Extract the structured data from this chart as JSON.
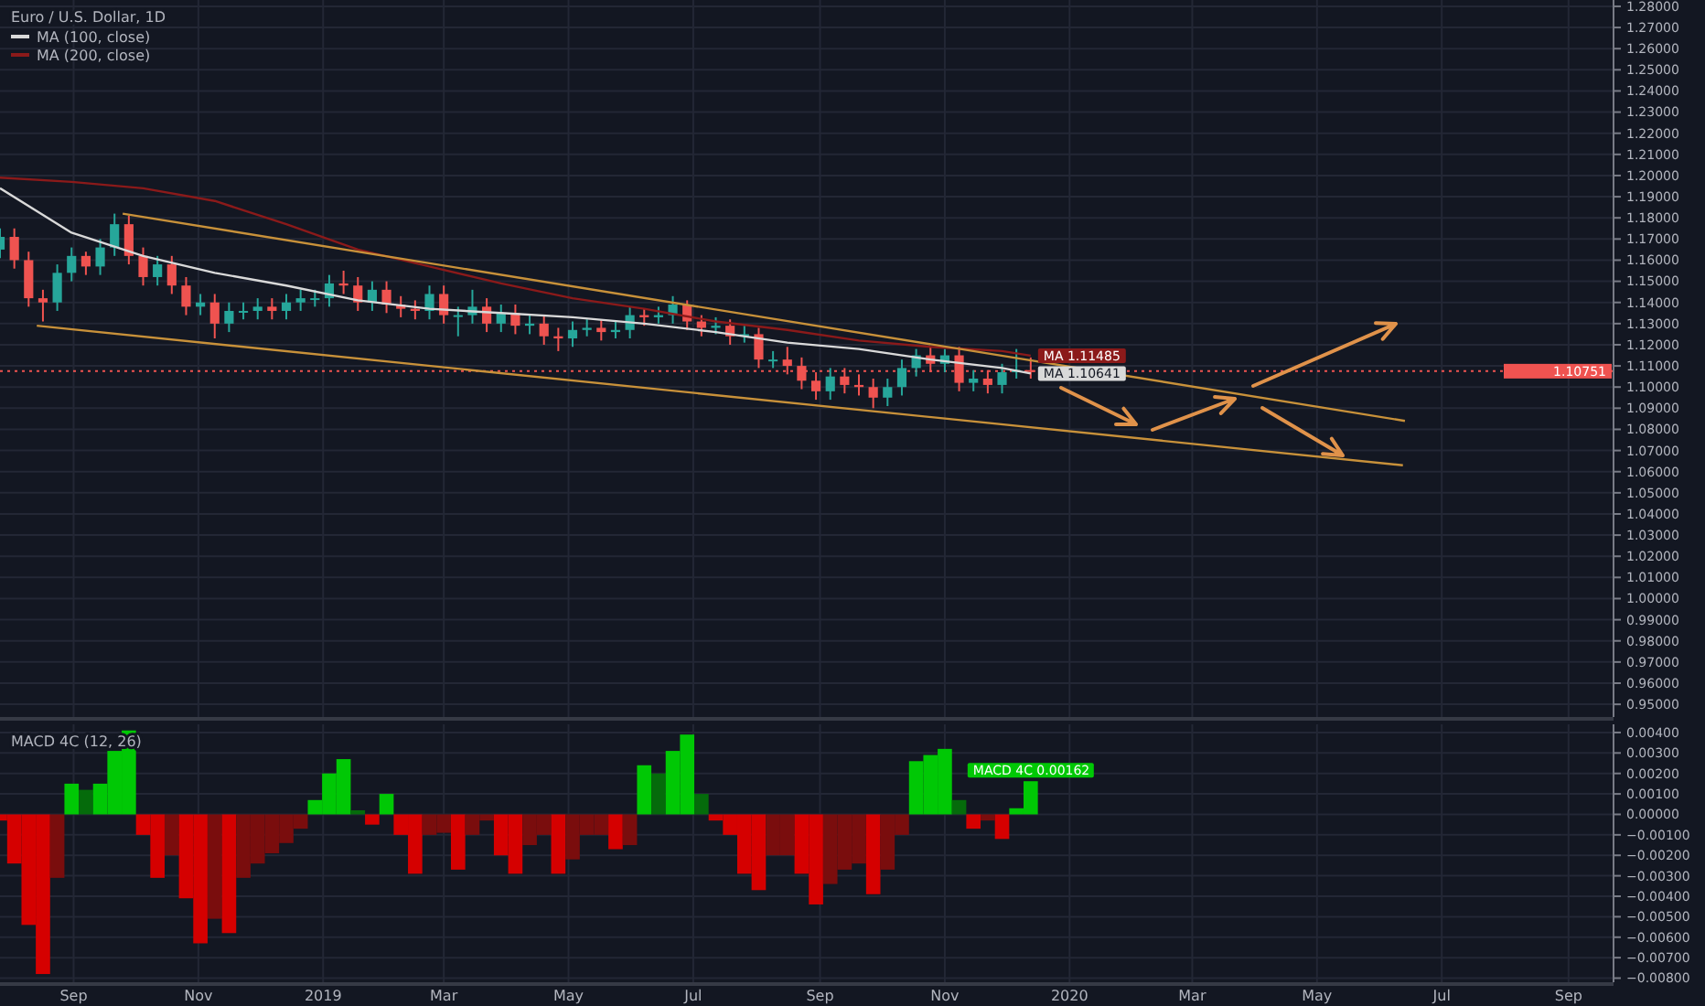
{
  "chart_data": [
    {
      "type": "candlestick",
      "title": "Euro / U.S. Dollar, 1D",
      "legend": "top left",
      "grid": true,
      "tick_labels": "y",
      "x": [
        "2018-07-27",
        "2018-08-03",
        "2018-08-10",
        "2018-08-17",
        "2018-08-24",
        "2018-08-31",
        "2018-09-07",
        "2018-09-14",
        "2018-09-21",
        "2018-09-28",
        "2018-10-05",
        "2018-10-12",
        "2018-10-19",
        "2018-10-26",
        "2018-11-02",
        "2018-11-09",
        "2018-11-16",
        "2018-11-23",
        "2018-11-30",
        "2018-12-07",
        "2018-12-14",
        "2018-12-21",
        "2018-12-28",
        "2019-01-04",
        "2019-01-11",
        "2019-01-18",
        "2019-01-25",
        "2019-02-01",
        "2019-02-08",
        "2019-02-15",
        "2019-02-22",
        "2019-03-01",
        "2019-03-08",
        "2019-03-15",
        "2019-03-22",
        "2019-03-29",
        "2019-04-05",
        "2019-04-12",
        "2019-04-19",
        "2019-04-26",
        "2019-05-03",
        "2019-05-10",
        "2019-05-17",
        "2019-05-24",
        "2019-05-31",
        "2019-06-07",
        "2019-06-14",
        "2019-06-21",
        "2019-06-28",
        "2019-07-05",
        "2019-07-12",
        "2019-07-19",
        "2019-07-26",
        "2019-08-02",
        "2019-08-09",
        "2019-08-16",
        "2019-08-23",
        "2019-08-30",
        "2019-09-06",
        "2019-09-13",
        "2019-09-20",
        "2019-09-27",
        "2019-10-04",
        "2019-10-11",
        "2019-10-18",
        "2019-10-25",
        "2019-11-01",
        "2019-11-08",
        "2019-11-15",
        "2019-11-22",
        "2019-11-29",
        "2019-12-06",
        "2019-12-13"
      ],
      "ohlc": [
        [
          1.165,
          1.175,
          1.161,
          1.171
        ],
        [
          1.171,
          1.175,
          1.156,
          1.16
        ],
        [
          1.16,
          1.164,
          1.138,
          1.142
        ],
        [
          1.142,
          1.146,
          1.131,
          1.14
        ],
        [
          1.14,
          1.158,
          1.136,
          1.154
        ],
        [
          1.154,
          1.166,
          1.15,
          1.162
        ],
        [
          1.162,
          1.164,
          1.153,
          1.157
        ],
        [
          1.157,
          1.17,
          1.153,
          1.166
        ],
        [
          1.166,
          1.182,
          1.162,
          1.177
        ],
        [
          1.177,
          1.181,
          1.158,
          1.162
        ],
        [
          1.162,
          1.166,
          1.148,
          1.152
        ],
        [
          1.152,
          1.162,
          1.148,
          1.158
        ],
        [
          1.158,
          1.162,
          1.144,
          1.148
        ],
        [
          1.148,
          1.152,
          1.134,
          1.138
        ],
        [
          1.138,
          1.144,
          1.134,
          1.14
        ],
        [
          1.14,
          1.144,
          1.123,
          1.13
        ],
        [
          1.13,
          1.14,
          1.126,
          1.136
        ],
        [
          1.136,
          1.14,
          1.132,
          1.136
        ],
        [
          1.136,
          1.142,
          1.132,
          1.138
        ],
        [
          1.138,
          1.142,
          1.132,
          1.136
        ],
        [
          1.136,
          1.144,
          1.132,
          1.14
        ],
        [
          1.14,
          1.146,
          1.136,
          1.142
        ],
        [
          1.142,
          1.146,
          1.138,
          1.142
        ],
        [
          1.142,
          1.153,
          1.138,
          1.149
        ],
        [
          1.149,
          1.155,
          1.144,
          1.148
        ],
        [
          1.148,
          1.152,
          1.136,
          1.14
        ],
        [
          1.14,
          1.15,
          1.136,
          1.146
        ],
        [
          1.146,
          1.15,
          1.135,
          1.139
        ],
        [
          1.139,
          1.143,
          1.133,
          1.137
        ],
        [
          1.137,
          1.141,
          1.132,
          1.136
        ],
        [
          1.136,
          1.148,
          1.132,
          1.144
        ],
        [
          1.144,
          1.148,
          1.13,
          1.134
        ],
        [
          1.134,
          1.138,
          1.124,
          1.134
        ],
        [
          1.134,
          1.146,
          1.13,
          1.138
        ],
        [
          1.138,
          1.142,
          1.126,
          1.13
        ],
        [
          1.13,
          1.139,
          1.126,
          1.135
        ],
        [
          1.135,
          1.139,
          1.125,
          1.129
        ],
        [
          1.129,
          1.134,
          1.125,
          1.13
        ],
        [
          1.13,
          1.134,
          1.12,
          1.124
        ],
        [
          1.124,
          1.128,
          1.117,
          1.123
        ],
        [
          1.123,
          1.131,
          1.119,
          1.127
        ],
        [
          1.127,
          1.132,
          1.124,
          1.128
        ],
        [
          1.128,
          1.132,
          1.122,
          1.126
        ],
        [
          1.126,
          1.131,
          1.123,
          1.127
        ],
        [
          1.127,
          1.138,
          1.123,
          1.134
        ],
        [
          1.134,
          1.137,
          1.129,
          1.133
        ],
        [
          1.133,
          1.138,
          1.13,
          1.134
        ],
        [
          1.134,
          1.143,
          1.13,
          1.139
        ],
        [
          1.139,
          1.141,
          1.127,
          1.131
        ],
        [
          1.131,
          1.134,
          1.124,
          1.128
        ],
        [
          1.128,
          1.133,
          1.125,
          1.129
        ],
        [
          1.129,
          1.132,
          1.12,
          1.124
        ],
        [
          1.124,
          1.129,
          1.121,
          1.125
        ],
        [
          1.125,
          1.128,
          1.109,
          1.113
        ],
        [
          1.113,
          1.117,
          1.109,
          1.113
        ],
        [
          1.113,
          1.119,
          1.106,
          1.11
        ],
        [
          1.11,
          1.114,
          1.099,
          1.103
        ],
        [
          1.103,
          1.107,
          1.094,
          1.098
        ],
        [
          1.098,
          1.109,
          1.094,
          1.105
        ],
        [
          1.105,
          1.109,
          1.097,
          1.101
        ],
        [
          1.101,
          1.106,
          1.096,
          1.1
        ],
        [
          1.1,
          1.104,
          1.09,
          1.095
        ],
        [
          1.095,
          1.104,
          1.091,
          1.1
        ],
        [
          1.1,
          1.113,
          1.096,
          1.109
        ],
        [
          1.109,
          1.118,
          1.105,
          1.115
        ],
        [
          1.115,
          1.119,
          1.107,
          1.111
        ],
        [
          1.111,
          1.118,
          1.107,
          1.115
        ],
        [
          1.115,
          1.119,
          1.098,
          1.102
        ],
        [
          1.102,
          1.108,
          1.098,
          1.104
        ],
        [
          1.104,
          1.108,
          1.097,
          1.101
        ],
        [
          1.101,
          1.111,
          1.097,
          1.107
        ],
        [
          1.107,
          1.118,
          1.104,
          1.108
        ],
        [
          1.108,
          1.114,
          1.104,
          1.1075
        ]
      ],
      "series": [
        {
          "name": "MA (100, close)",
          "type": "line",
          "color": "#d9d9d9",
          "x": [
            "2018-07-27",
            "2018-08-31",
            "2018-10-05",
            "2018-11-09",
            "2018-12-14",
            "2019-01-18",
            "2019-02-22",
            "2019-03-29",
            "2019-05-03",
            "2019-06-07",
            "2019-07-12",
            "2019-08-16",
            "2019-09-20",
            "2019-10-25",
            "2019-11-29",
            "2019-12-13"
          ],
          "values": [
            1.194,
            1.173,
            1.162,
            1.154,
            1.148,
            1.141,
            1.137,
            1.135,
            1.133,
            1.13,
            1.126,
            1.121,
            1.118,
            1.113,
            1.109,
            1.10641
          ],
          "value_labels": [
            null,
            null,
            null,
            null,
            null,
            null,
            null,
            null,
            null,
            null,
            null,
            null,
            null,
            null,
            null,
            "MA 1.10641"
          ]
        },
        {
          "name": "MA (200, close)",
          "type": "line",
          "color": "#8b1a1a",
          "x": [
            "2018-07-27",
            "2018-08-31",
            "2018-10-05",
            "2018-11-09",
            "2018-12-14",
            "2019-01-18",
            "2019-02-22",
            "2019-03-29",
            "2019-05-03",
            "2019-06-07",
            "2019-07-12",
            "2019-08-16",
            "2019-09-20",
            "2019-10-25",
            "2019-11-29",
            "2019-12-13"
          ],
          "values": [
            1.199,
            1.197,
            1.194,
            1.188,
            1.177,
            1.165,
            1.157,
            1.149,
            1.142,
            1.137,
            1.131,
            1.127,
            1.122,
            1.119,
            1.117,
            1.11485
          ],
          "value_labels": [
            null,
            null,
            null,
            null,
            null,
            null,
            null,
            null,
            null,
            null,
            null,
            null,
            null,
            null,
            null,
            "MA 1.11485"
          ]
        },
        {
          "type": "line",
          "color": "#c8913a",
          "x": [
            "2018-09-25",
            "2020-06-13"
          ],
          "values": [
            1.182,
            1.084
          ]
        },
        {
          "type": "line",
          "color": "#c8913a",
          "x": [
            "2018-08-14",
            "2020-06-12"
          ],
          "values": [
            1.129,
            1.063
          ]
        }
      ],
      "ref_lines": [
        {
          "axis": "y",
          "value": 1.10751,
          "label": "1.10751",
          "color": "#ef5350",
          "line_style": "dotted"
        }
      ],
      "xlim": [
        "2018-07-27",
        "2020-09-23"
      ],
      "xticks": [
        {
          "value": "2018-09-01",
          "label": null
        },
        {
          "value": "2018-11-01",
          "label": null
        },
        {
          "value": "2019-01-01",
          "label": null
        },
        {
          "value": "2019-03-01",
          "label": null
        },
        {
          "value": "2019-05-01",
          "label": null
        },
        {
          "value": "2019-07-01",
          "label": null
        },
        {
          "value": "2019-09-01",
          "label": null
        },
        {
          "value": "2019-11-01",
          "label": null
        },
        {
          "value": "2020-01-01",
          "label": null
        },
        {
          "value": "2020-03-01",
          "label": null
        },
        {
          "value": "2020-05-01",
          "label": null
        },
        {
          "value": "2020-07-01",
          "label": null
        },
        {
          "value": "2020-09-01",
          "label": null
        }
      ],
      "ylim": [
        0.944,
        1.283
      ],
      "yticks": [
        {
          "value": 1.28,
          "label": "1.28000"
        },
        {
          "value": 1.27,
          "label": "1.27000"
        },
        {
          "value": 1.26,
          "label": "1.26000"
        },
        {
          "value": 1.25,
          "label": "1.25000"
        },
        {
          "value": 1.24,
          "label": "1.24000"
        },
        {
          "value": 1.23,
          "label": "1.23000"
        },
        {
          "value": 1.22,
          "label": "1.22000"
        },
        {
          "value": 1.21,
          "label": "1.21000"
        },
        {
          "value": 1.2,
          "label": "1.20000"
        },
        {
          "value": 1.19,
          "label": "1.19000"
        },
        {
          "value": 1.18,
          "label": "1.18000"
        },
        {
          "value": 1.17,
          "label": "1.17000"
        },
        {
          "value": 1.16,
          "label": "1.16000"
        },
        {
          "value": 1.15,
          "label": "1.15000"
        },
        {
          "value": 1.14,
          "label": "1.14000"
        },
        {
          "value": 1.13,
          "label": "1.13000"
        },
        {
          "value": 1.12,
          "label": "1.12000"
        },
        {
          "value": 1.11,
          "label": "1.11000"
        },
        {
          "value": 1.1,
          "label": "1.10000"
        },
        {
          "value": 1.09,
          "label": "1.09000"
        },
        {
          "value": 1.08,
          "label": "1.08000"
        },
        {
          "value": 1.07,
          "label": "1.07000"
        },
        {
          "value": 1.06,
          "label": "1.06000"
        },
        {
          "value": 1.05,
          "label": "1.05000"
        },
        {
          "value": 1.04,
          "label": "1.04000"
        },
        {
          "value": 1.03,
          "label": "1.03000"
        },
        {
          "value": 1.02,
          "label": "1.02000"
        },
        {
          "value": 1.01,
          "label": "1.01000"
        },
        {
          "value": 1,
          "label": "1.00000"
        },
        {
          "value": 0.99,
          "label": "0.99000"
        },
        {
          "value": 0.98,
          "label": "0.98000"
        },
        {
          "value": 0.97,
          "label": "0.97000"
        },
        {
          "value": 0.96,
          "label": "0.96000"
        },
        {
          "value": 0.95,
          "label": "0.95000"
        }
      ]
    },
    {
      "type": "bar",
      "title": "MACD 4C (12, 26)",
      "grid": true,
      "x": [
        "2018-07-27",
        "2018-08-03",
        "2018-08-10",
        "2018-08-17",
        "2018-08-24",
        "2018-08-31",
        "2018-09-07",
        "2018-09-14",
        "2018-09-21",
        "2018-09-28",
        "2018-10-05",
        "2018-10-12",
        "2018-10-19",
        "2018-10-26",
        "2018-11-02",
        "2018-11-09",
        "2018-11-16",
        "2018-11-23",
        "2018-11-30",
        "2018-12-07",
        "2018-12-14",
        "2018-12-21",
        "2018-12-28",
        "2019-01-04",
        "2019-01-11",
        "2019-01-18",
        "2019-01-25",
        "2019-02-01",
        "2019-02-08",
        "2019-02-15",
        "2019-02-22",
        "2019-03-01",
        "2019-03-08",
        "2019-03-15",
        "2019-03-22",
        "2019-03-29",
        "2019-04-05",
        "2019-04-12",
        "2019-04-19",
        "2019-04-26",
        "2019-05-03",
        "2019-05-10",
        "2019-05-17",
        "2019-05-24",
        "2019-05-31",
        "2019-06-07",
        "2019-06-14",
        "2019-06-21",
        "2019-06-28",
        "2019-07-05",
        "2019-07-12",
        "2019-07-19",
        "2019-07-26",
        "2019-08-02",
        "2019-08-09",
        "2019-08-16",
        "2019-08-23",
        "2019-08-30",
        "2019-09-06",
        "2019-09-13",
        "2019-09-20",
        "2019-09-27",
        "2019-10-04",
        "2019-10-11",
        "2019-10-18",
        "2019-10-25",
        "2019-11-01",
        "2019-11-08",
        "2019-11-15",
        "2019-11-22",
        "2019-11-29",
        "2019-12-06",
        "2019-12-13"
      ],
      "values": [
        -0.0003,
        -0.0024,
        -0.0054,
        -0.0078,
        -0.0031,
        0.0015,
        0.0012,
        0.0015,
        0.0031,
        0.0041,
        -0.001,
        -0.0031,
        -0.002,
        -0.0041,
        -0.0063,
        -0.0051,
        -0.0058,
        -0.0031,
        -0.0024,
        -0.0019,
        -0.0014,
        -0.0007,
        0.0007,
        0.002,
        0.0027,
        0.0002,
        -0.0005,
        0.001,
        -0.001,
        -0.0029,
        -0.001,
        -0.0009,
        -0.0027,
        -0.001,
        -0.0003,
        -0.002,
        -0.0029,
        -0.0015,
        -0.001,
        -0.0029,
        -0.0022,
        -0.001,
        -0.001,
        -0.0017,
        -0.0015,
        0.0024,
        0.002,
        0.0031,
        0.0039,
        0.001,
        -0.0003,
        -0.001,
        -0.0029,
        -0.0037,
        -0.002,
        -0.002,
        -0.0029,
        -0.0044,
        -0.0034,
        -0.0027,
        -0.0024,
        -0.0039,
        -0.0027,
        -0.001,
        0.0026,
        0.0029,
        0.0032,
        0.0007,
        -0.0007,
        -0.0003,
        -0.0012,
        0.0003,
        0.00162
      ],
      "colors": [
        "#d50000",
        "#d50000",
        "#d50000",
        "#d50000",
        "#7a0d0d",
        "#00c805",
        "#056b0b",
        "#00c805",
        "#00c805",
        "#00c805",
        "#d50000",
        "#d50000",
        "#7a0d0d",
        "#d50000",
        "#d50000",
        "#7a0d0d",
        "#d50000",
        "#7a0d0d",
        "#7a0d0d",
        "#7a0d0d",
        "#7a0d0d",
        "#7a0d0d",
        "#00c805",
        "#00c805",
        "#00c805",
        "#056b0b",
        "#d50000",
        "#00c805",
        "#d50000",
        "#d50000",
        "#7a0d0d",
        "#7a0d0d",
        "#d50000",
        "#7a0d0d",
        "#7a0d0d",
        "#d50000",
        "#d50000",
        "#7a0d0d",
        "#7a0d0d",
        "#d50000",
        "#7a0d0d",
        "#7a0d0d",
        "#7a0d0d",
        "#d50000",
        "#7a0d0d",
        "#00c805",
        "#056b0b",
        "#00c805",
        "#00c805",
        "#056b0b",
        "#d50000",
        "#d50000",
        "#d50000",
        "#d50000",
        "#7a0d0d",
        "#7a0d0d",
        "#d50000",
        "#d50000",
        "#7a0d0d",
        "#7a0d0d",
        "#7a0d0d",
        "#d50000",
        "#7a0d0d",
        "#7a0d0d",
        "#00c805",
        "#00c805",
        "#00c805",
        "#056b0b",
        "#d50000",
        "#7a0d0d",
        "#d50000",
        "#00c805",
        "#00c805"
      ],
      "value_labels": [
        null,
        null,
        null,
        null,
        null,
        null,
        null,
        null,
        null,
        null,
        null,
        null,
        null,
        null,
        null,
        null,
        null,
        null,
        null,
        null,
        null,
        null,
        null,
        null,
        null,
        null,
        null,
        null,
        null,
        null,
        null,
        null,
        null,
        null,
        null,
        null,
        null,
        null,
        null,
        null,
        null,
        null,
        null,
        null,
        null,
        null,
        null,
        null,
        null,
        null,
        null,
        null,
        null,
        null,
        null,
        null,
        null,
        null,
        null,
        null,
        null,
        null,
        null,
        null,
        null,
        null,
        null,
        null,
        null,
        null,
        null,
        null,
        "MACD 4C 0.00162"
      ],
      "xlim": [
        "2018-07-27",
        "2020-09-23"
      ],
      "xticks": [
        {
          "value": "2018-09-01",
          "label": "Sep"
        },
        {
          "value": "2018-11-01",
          "label": "Nov"
        },
        {
          "value": "2019-01-01",
          "label": "2019"
        },
        {
          "value": "2019-03-01",
          "label": "Mar"
        },
        {
          "value": "2019-05-01",
          "label": "May"
        },
        {
          "value": "2019-07-01",
          "label": "Jul"
        },
        {
          "value": "2019-09-01",
          "label": "Sep"
        },
        {
          "value": "2019-11-01",
          "label": "Nov"
        },
        {
          "value": "2020-01-01",
          "label": "2020"
        },
        {
          "value": "2020-03-01",
          "label": "Mar"
        },
        {
          "value": "2020-05-01",
          "label": "May"
        },
        {
          "value": "2020-07-01",
          "label": "Jul"
        },
        {
          "value": "2020-09-01",
          "label": "Sep"
        }
      ],
      "ylim": [
        -0.0082,
        0.0044
      ],
      "yticks": [
        {
          "value": 0.004,
          "label": "0.00400"
        },
        {
          "value": 0.003,
          "label": "0.00300"
        },
        {
          "value": 0.002,
          "label": "0.00200"
        },
        {
          "value": 0.001,
          "label": "0.00100"
        },
        {
          "value": 0,
          "label": "0.00000"
        },
        {
          "value": -0.001,
          "label": "−0.00100"
        },
        {
          "value": -0.002,
          "label": "−0.00200"
        },
        {
          "value": -0.003,
          "label": "−0.00300"
        },
        {
          "value": -0.004,
          "label": "−0.00400"
        },
        {
          "value": -0.005,
          "label": "−0.00500"
        },
        {
          "value": -0.006,
          "label": "−0.00600"
        },
        {
          "value": -0.007,
          "label": "−0.00700"
        },
        {
          "value": -0.008,
          "label": "−0.00800"
        }
      ]
    }
  ]
}
